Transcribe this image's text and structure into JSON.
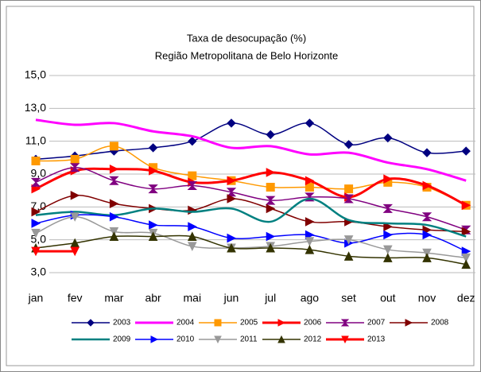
{
  "chart_data": {
    "type": "line",
    "title": "Taxa de desocupação (%)",
    "subtitle": "Região Metropolitana de Belo Horizonte",
    "categories": [
      "jan",
      "fev",
      "mar",
      "abr",
      "mai",
      "jun",
      "jul",
      "ago",
      "set",
      "out",
      "nov",
      "dez"
    ],
    "ylim": [
      3,
      15
    ],
    "yticks": [
      {
        "value": 3,
        "label": "3,0"
      },
      {
        "value": 5,
        "label": "5,0"
      },
      {
        "value": 7,
        "label": "7,0"
      },
      {
        "value": 9,
        "label": "9,0"
      },
      {
        "value": 11,
        "label": "11,0"
      },
      {
        "value": 13,
        "label": "13,0"
      },
      {
        "value": 15,
        "label": "15,0"
      }
    ],
    "grid": true,
    "legend": "bottom",
    "series": [
      {
        "name": "2003",
        "color": "#000080",
        "marker": "diamond",
        "width": 1.5,
        "values": [
          9.9,
          10.1,
          10.4,
          10.6,
          11.0,
          12.1,
          11.4,
          12.1,
          10.8,
          11.2,
          10.3,
          10.4
        ]
      },
      {
        "name": "2004",
        "color": "#ff00ff",
        "marker": "none",
        "width": 3,
        "values": [
          12.3,
          12.0,
          12.1,
          11.6,
          11.3,
          10.6,
          10.7,
          10.2,
          10.3,
          9.7,
          9.3,
          8.6
        ]
      },
      {
        "name": "2005",
        "color": "#ff9900",
        "marker": "square",
        "width": 1.5,
        "values": [
          9.8,
          9.9,
          10.7,
          9.4,
          8.9,
          8.6,
          8.2,
          8.2,
          8.1,
          8.5,
          8.2,
          7.1
        ]
      },
      {
        "name": "2006",
        "color": "#ff0000",
        "marker": "triangle-right",
        "width": 3,
        "values": [
          8.1,
          9.2,
          9.3,
          9.2,
          8.5,
          8.6,
          9.1,
          8.6,
          7.6,
          8.7,
          8.3,
          7.1
        ]
      },
      {
        "name": "2007",
        "color": "#800080",
        "marker": "hourglass",
        "width": 1.5,
        "values": [
          8.5,
          9.4,
          8.6,
          8.1,
          8.3,
          7.9,
          7.4,
          7.6,
          7.5,
          6.9,
          6.4,
          5.6
        ]
      },
      {
        "name": "2008",
        "color": "#800000",
        "marker": "triangle-right",
        "width": 1.5,
        "values": [
          6.7,
          7.7,
          7.2,
          6.9,
          6.8,
          7.5,
          6.9,
          6.1,
          6.1,
          5.8,
          5.6,
          5.5
        ]
      },
      {
        "name": "2009",
        "color": "#008080",
        "marker": "none",
        "width": 2.5,
        "values": [
          6.5,
          6.7,
          6.5,
          6.9,
          6.7,
          6.9,
          6.1,
          7.5,
          6.2,
          6.0,
          5.9,
          5.2
        ]
      },
      {
        "name": "2010",
        "color": "#0000ff",
        "marker": "triangle-right",
        "width": 1.5,
        "values": [
          6.0,
          6.5,
          6.4,
          5.9,
          5.8,
          5.1,
          5.2,
          5.3,
          4.8,
          5.3,
          5.3,
          4.3
        ]
      },
      {
        "name": "2011",
        "color": "#999999",
        "marker": "triangle-down",
        "width": 1.5,
        "values": [
          5.4,
          6.4,
          5.5,
          5.4,
          4.6,
          4.5,
          4.6,
          4.9,
          5.0,
          4.4,
          4.2,
          3.9
        ]
      },
      {
        "name": "2012",
        "color": "#333300",
        "marker": "triangle-up",
        "width": 1.5,
        "values": [
          4.5,
          4.8,
          5.2,
          5.2,
          5.2,
          4.5,
          4.5,
          4.4,
          4.0,
          3.9,
          3.9,
          3.5
        ]
      },
      {
        "name": "2013",
        "color": "#ff0000",
        "marker": "triangle-down",
        "width": 3,
        "values": [
          4.3,
          4.3,
          null,
          null,
          null,
          null,
          null,
          null,
          null,
          null,
          null,
          null
        ]
      }
    ]
  }
}
